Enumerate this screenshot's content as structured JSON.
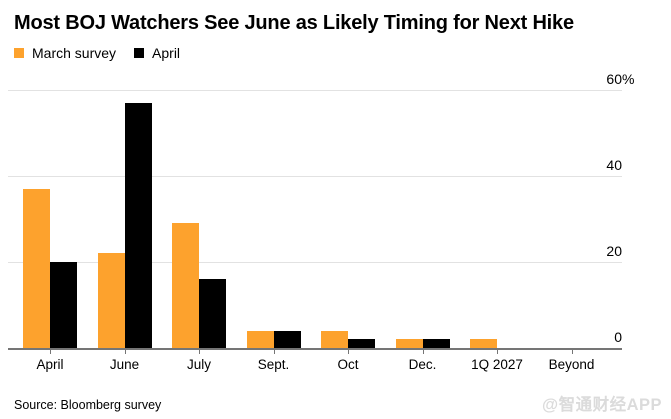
{
  "header": {
    "title": "Most BOJ Watchers See June as Likely Timing for Next Hike"
  },
  "legend": [
    {
      "label": "March survey",
      "color": "#FDA22D"
    },
    {
      "label": "April",
      "color": "#000000"
    }
  ],
  "footer": {
    "source": "Source: Bloomberg survey",
    "watermark": "@智通财经APP"
  },
  "colors": {
    "march_series": "#FDA22D",
    "april_series": "#000000",
    "gridline": "#e2e2e2",
    "axis": "#757575",
    "watermark": "#dbdbdb",
    "background": "#ffffff"
  },
  "chart_data": {
    "type": "bar",
    "title": "Most BOJ Watchers See June as Likely Timing for Next Hike",
    "categories": [
      "April",
      "June",
      "July",
      "Sept.",
      "Oct",
      "Dec.",
      "1Q 2027",
      "Beyond"
    ],
    "series": [
      {
        "name": "March survey",
        "color": "#FDA22D",
        "values": [
          37,
          22,
          29,
          4,
          4,
          2,
          2,
          0
        ]
      },
      {
        "name": "April",
        "color": "#000000",
        "values": [
          20,
          57,
          16,
          4,
          2,
          2,
          0,
          0
        ]
      }
    ],
    "xlabel": "",
    "ylabel": "%",
    "ylim": [
      0,
      60
    ],
    "yticks": [
      {
        "value": 0,
        "label": "0",
        "suffix": ""
      },
      {
        "value": 20,
        "label": "20",
        "suffix": ""
      },
      {
        "value": 40,
        "label": "40",
        "suffix": ""
      },
      {
        "value": 60,
        "label": "60",
        "suffix": "%"
      }
    ],
    "grid": true,
    "legend_position": "top-left",
    "unit": "percent of surveyed economists"
  }
}
